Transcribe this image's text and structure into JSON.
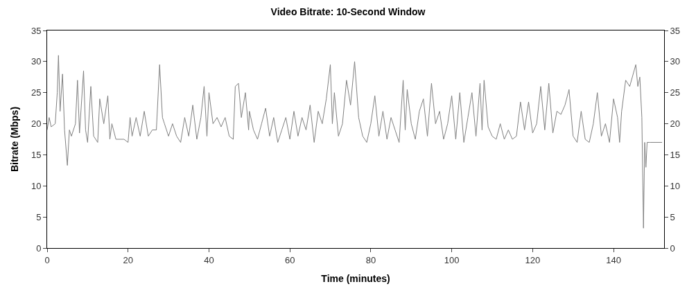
{
  "chart_data": {
    "type": "line",
    "title": "Video Bitrate: 10-Second Window",
    "xlabel": "Time (minutes)",
    "ylabel": "Bitrate (Mbps)",
    "xlim": [
      0,
      152.5
    ],
    "xticks": [
      0,
      20,
      40,
      60,
      80,
      100,
      120,
      140
    ],
    "ylim": [
      0,
      35
    ],
    "yticks": [
      0,
      5,
      10,
      15,
      20,
      25,
      30,
      35
    ],
    "y2lim": [
      0,
      35
    ],
    "y2ticks": [
      0,
      5,
      10,
      15,
      20,
      25,
      30,
      35
    ],
    "marker": "none",
    "line_style": "solid",
    "series": [
      {
        "color": "#808080",
        "x": [
          0,
          0.5,
          1,
          2,
          2.5,
          2.8,
          3.2,
          3.8,
          4.3,
          5,
          5.5,
          6,
          7,
          7.5,
          8,
          9,
          9.5,
          10,
          10.8,
          11.5,
          12.5,
          13,
          14,
          15,
          15.5,
          16,
          17,
          18,
          19,
          20,
          20.5,
          21,
          22,
          23,
          24,
          25,
          26,
          27,
          27.8,
          28.5,
          29,
          30,
          31,
          32,
          33,
          34,
          35,
          36,
          37,
          38,
          38.8,
          39.5,
          40,
          41,
          42,
          43,
          44,
          45,
          46,
          46.5,
          47.3,
          48,
          49,
          49.8,
          50,
          51,
          52,
          53,
          54,
          55,
          56,
          57,
          58,
          59,
          60,
          61,
          62,
          63,
          64,
          65,
          66,
          67,
          68,
          69,
          70,
          70.5,
          71,
          72,
          73,
          74,
          75,
          76,
          77,
          78,
          79,
          80,
          81,
          82,
          83,
          84,
          85,
          86,
          87,
          88,
          88.5,
          89,
          90,
          91,
          92,
          93,
          94,
          95,
          96,
          97,
          98,
          99,
          100,
          101,
          102,
          103,
          104,
          105,
          106,
          107,
          107.5,
          108,
          109,
          110,
          111,
          112,
          113,
          114,
          115,
          116,
          117,
          118,
          119,
          120,
          121,
          122,
          123,
          124,
          125,
          126,
          127,
          128,
          129,
          130,
          131,
          132,
          133,
          134,
          135,
          136,
          137,
          138,
          139,
          140,
          141,
          141.5,
          142,
          143,
          144,
          145.5,
          146,
          146.5,
          147,
          147.4,
          147.7,
          148,
          148.3,
          149,
          152
        ],
        "values": [
          19,
          21,
          19.5,
          20,
          25,
          31,
          22,
          28,
          19,
          13.3,
          19,
          18,
          20,
          27,
          18.5,
          28.5,
          19,
          17,
          26,
          18,
          17,
          24,
          20,
          24.5,
          17.5,
          20,
          17.5,
          17.5,
          17.5,
          17,
          21,
          18,
          21,
          18,
          22,
          18,
          19,
          19,
          29.5,
          21,
          20,
          18,
          20,
          18,
          17,
          21,
          18,
          23,
          17.5,
          21,
          26,
          18,
          25,
          20,
          21,
          19.5,
          21,
          18,
          17.5,
          26,
          26.5,
          21,
          25,
          19,
          22,
          19,
          17.5,
          20,
          22.5,
          18,
          21,
          17,
          19,
          21,
          17.5,
          22,
          18,
          21,
          19,
          23,
          17,
          22,
          20,
          24,
          29.5,
          20,
          25,
          18,
          20,
          27,
          23,
          30,
          21,
          18,
          17,
          20,
          24.5,
          18,
          22,
          17.5,
          21,
          19,
          17,
          27,
          19,
          25.5,
          20,
          17.5,
          22,
          24,
          18,
          26.5,
          20,
          22,
          17.5,
          20,
          24.5,
          17.5,
          25,
          17,
          21,
          25,
          18,
          26.5,
          19,
          27,
          19.5,
          18,
          17.5,
          20,
          17.5,
          19,
          17.5,
          18,
          23.5,
          19,
          23.5,
          18.5,
          20,
          26,
          19,
          26.5,
          18.5,
          22,
          21.5,
          23,
          25.5,
          18,
          17,
          22,
          17.5,
          17,
          20,
          25,
          18,
          20,
          17,
          24,
          21,
          17,
          22,
          27,
          26,
          29.5,
          26,
          27.5,
          21,
          3.2,
          17,
          13,
          17,
          17,
          17
        ]
      }
    ]
  }
}
